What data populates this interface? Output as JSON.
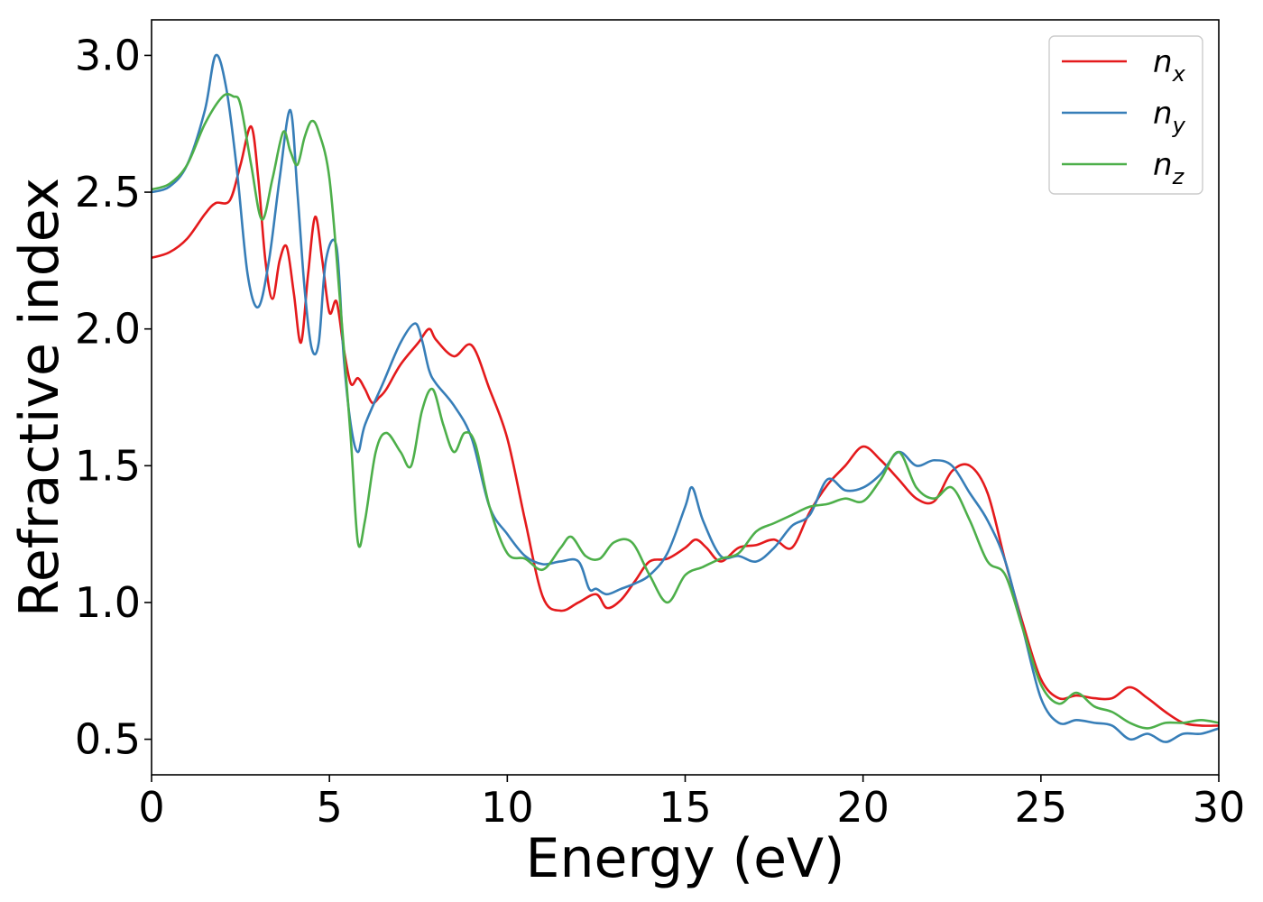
{
  "chart_data": {
    "type": "line",
    "xlabel": "Energy (eV)",
    "ylabel": "Refractive index",
    "xlim": [
      0,
      30
    ],
    "ylim": [
      0.37,
      3.13
    ],
    "xticks": [
      0,
      5,
      10,
      15,
      20,
      25,
      30
    ],
    "xtick_labels": [
      "0",
      "5",
      "10",
      "15",
      "20",
      "25",
      "30"
    ],
    "yticks": [
      0.5,
      1.0,
      1.5,
      2.0,
      2.5,
      3.0
    ],
    "ytick_labels": [
      "0.5",
      "1.0",
      "1.5",
      "2.0",
      "2.5",
      "3.0"
    ],
    "grid": false,
    "legend_position": "top-right",
    "series": [
      {
        "name": "n",
        "subscript": "x",
        "color": "#e41a1c",
        "x": [
          0,
          0.5,
          1.0,
          1.5,
          1.8,
          2.2,
          2.5,
          2.8,
          3.0,
          3.2,
          3.4,
          3.6,
          3.8,
          4.0,
          4.2,
          4.4,
          4.6,
          4.8,
          5.0,
          5.2,
          5.4,
          5.6,
          5.8,
          6.0,
          6.2,
          6.4,
          6.6,
          7.0,
          7.5,
          7.8,
          8.0,
          8.5,
          9.0,
          9.5,
          10.0,
          10.5,
          11.0,
          11.5,
          12.0,
          12.5,
          12.8,
          13.2,
          13.6,
          14.0,
          14.5,
          15.0,
          15.3,
          15.6,
          16.0,
          16.5,
          17.0,
          17.5,
          18.0,
          18.5,
          19.0,
          19.5,
          20.0,
          20.5,
          21.0,
          21.5,
          22.0,
          22.5,
          23.0,
          23.5,
          24.0,
          24.5,
          25.0,
          25.5,
          26.0,
          26.5,
          27.0,
          27.5,
          28.0,
          28.5,
          29.0,
          29.5,
          30.0
        ],
        "y": [
          2.26,
          2.28,
          2.33,
          2.42,
          2.46,
          2.47,
          2.6,
          2.74,
          2.55,
          2.25,
          2.11,
          2.25,
          2.3,
          2.13,
          1.95,
          2.2,
          2.41,
          2.25,
          2.06,
          2.1,
          1.93,
          1.8,
          1.82,
          1.78,
          1.73,
          1.75,
          1.78,
          1.87,
          1.95,
          2.0,
          1.96,
          1.9,
          1.94,
          1.78,
          1.6,
          1.3,
          1.02,
          0.97,
          1.0,
          1.03,
          0.98,
          1.01,
          1.08,
          1.15,
          1.16,
          1.2,
          1.23,
          1.2,
          1.15,
          1.2,
          1.21,
          1.23,
          1.2,
          1.33,
          1.43,
          1.5,
          1.57,
          1.52,
          1.45,
          1.38,
          1.37,
          1.48,
          1.5,
          1.4,
          1.15,
          0.92,
          0.72,
          0.65,
          0.66,
          0.65,
          0.65,
          0.69,
          0.65,
          0.6,
          0.56,
          0.55,
          0.55
        ]
      },
      {
        "name": "n",
        "subscript": "y",
        "color": "#377eb8",
        "x": [
          0,
          0.5,
          1.0,
          1.5,
          1.8,
          2.1,
          2.4,
          2.7,
          3.0,
          3.3,
          3.6,
          3.9,
          4.1,
          4.3,
          4.5,
          4.7,
          4.9,
          5.2,
          5.4,
          5.6,
          5.8,
          6.0,
          6.5,
          7.0,
          7.4,
          7.6,
          7.8,
          8.0,
          8.5,
          9.0,
          9.5,
          10.0,
          10.5,
          11.0,
          11.5,
          12.0,
          12.3,
          12.5,
          12.8,
          13.2,
          13.6,
          14.0,
          14.5,
          15.0,
          15.2,
          15.5,
          16.0,
          16.5,
          17.0,
          17.5,
          18.0,
          18.5,
          19.0,
          19.5,
          20.0,
          20.5,
          21.0,
          21.5,
          22.0,
          22.5,
          23.0,
          23.5,
          24.0,
          24.5,
          25.0,
          25.5,
          26.0,
          26.5,
          27.0,
          27.5,
          28.0,
          28.5,
          29.0,
          29.5,
          30.0
        ],
        "y": [
          2.5,
          2.52,
          2.6,
          2.8,
          3.0,
          2.88,
          2.58,
          2.2,
          2.08,
          2.25,
          2.55,
          2.8,
          2.5,
          2.15,
          1.93,
          1.95,
          2.25,
          2.3,
          1.9,
          1.65,
          1.55,
          1.65,
          1.8,
          1.95,
          2.02,
          1.96,
          1.85,
          1.8,
          1.72,
          1.6,
          1.35,
          1.25,
          1.17,
          1.14,
          1.15,
          1.15,
          1.05,
          1.05,
          1.03,
          1.05,
          1.07,
          1.1,
          1.18,
          1.35,
          1.42,
          1.3,
          1.17,
          1.17,
          1.15,
          1.2,
          1.28,
          1.32,
          1.45,
          1.41,
          1.42,
          1.47,
          1.55,
          1.5,
          1.52,
          1.5,
          1.4,
          1.3,
          1.15,
          0.9,
          0.65,
          0.56,
          0.57,
          0.56,
          0.55,
          0.5,
          0.52,
          0.49,
          0.52,
          0.52,
          0.54
        ]
      },
      {
        "name": "n",
        "subscript": "z",
        "color": "#4daf4a",
        "x": [
          0,
          0.5,
          1.0,
          1.5,
          2.0,
          2.3,
          2.5,
          2.8,
          3.1,
          3.4,
          3.7,
          3.9,
          4.1,
          4.3,
          4.5,
          4.7,
          5.0,
          5.3,
          5.6,
          5.8,
          6.0,
          6.3,
          6.6,
          7.0,
          7.3,
          7.6,
          7.9,
          8.2,
          8.5,
          8.8,
          9.1,
          9.5,
          10.0,
          10.5,
          11.0,
          11.5,
          11.8,
          12.2,
          12.6,
          13.0,
          13.5,
          14.0,
          14.5,
          15.0,
          15.5,
          16.0,
          16.5,
          17.0,
          17.5,
          18.0,
          18.5,
          19.0,
          19.5,
          20.0,
          20.5,
          21.0,
          21.5,
          22.0,
          22.5,
          23.0,
          23.5,
          24.0,
          24.5,
          25.0,
          25.5,
          26.0,
          26.5,
          27.0,
          27.5,
          28.0,
          28.5,
          29.0,
          29.5,
          30.0
        ],
        "y": [
          2.51,
          2.53,
          2.6,
          2.75,
          2.85,
          2.85,
          2.82,
          2.6,
          2.4,
          2.55,
          2.72,
          2.65,
          2.6,
          2.7,
          2.76,
          2.72,
          2.55,
          2.1,
          1.6,
          1.22,
          1.3,
          1.55,
          1.62,
          1.55,
          1.5,
          1.7,
          1.78,
          1.65,
          1.55,
          1.62,
          1.58,
          1.35,
          1.18,
          1.16,
          1.12,
          1.2,
          1.24,
          1.17,
          1.16,
          1.22,
          1.22,
          1.1,
          1.0,
          1.1,
          1.13,
          1.16,
          1.18,
          1.26,
          1.29,
          1.32,
          1.35,
          1.36,
          1.38,
          1.37,
          1.45,
          1.55,
          1.42,
          1.38,
          1.42,
          1.3,
          1.15,
          1.1,
          0.9,
          0.7,
          0.63,
          0.67,
          0.62,
          0.6,
          0.56,
          0.54,
          0.56,
          0.56,
          0.57,
          0.56
        ]
      }
    ]
  }
}
